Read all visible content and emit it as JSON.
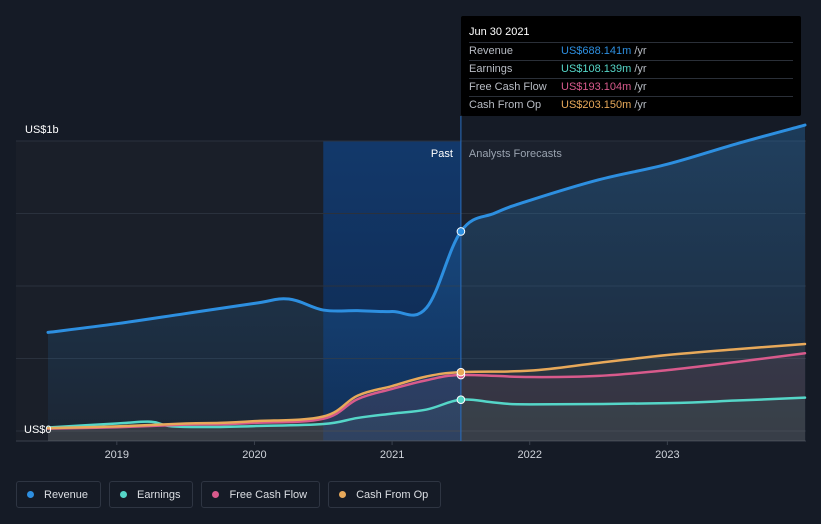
{
  "colors": {
    "revenue": "#2d8fe0",
    "earnings": "#55d6c8",
    "free_cash_flow": "#d85a8c",
    "cash_from_op": "#e8a95a",
    "background": "#151b26",
    "grid": "#2a313d",
    "axis_text": "#cfd3da"
  },
  "tooltip": {
    "date": "Jun 30 2021",
    "rows": [
      {
        "label": "Revenue",
        "value": "US$688.141m",
        "unit": "/yr",
        "color": "#2d8fe0"
      },
      {
        "label": "Earnings",
        "value": "US$108.139m",
        "unit": "/yr",
        "color": "#55d6c8"
      },
      {
        "label": "Free Cash Flow",
        "value": "US$193.104m",
        "unit": "/yr",
        "color": "#d85a8c"
      },
      {
        "label": "Cash From Op",
        "value": "US$203.150m",
        "unit": "/yr",
        "color": "#e8a95a"
      }
    ]
  },
  "legend": [
    {
      "label": "Revenue",
      "color": "#2d8fe0"
    },
    {
      "label": "Earnings",
      "color": "#55d6c8"
    },
    {
      "label": "Free Cash Flow",
      "color": "#d85a8c"
    },
    {
      "label": "Cash From Op",
      "color": "#e8a95a"
    }
  ],
  "chart_data": {
    "type": "line",
    "y_top_label": "US$1b",
    "y_bottom_label": "US$0",
    "past_label": "Past",
    "forecast_label": "Analysts Forecasts",
    "divider_x": 2021.5,
    "past_highlight_start_x": 2020.5,
    "xlim": [
      2018.5,
      2024.0
    ],
    "ylim": [
      0,
      1000
    ],
    "x_ticks": [
      2019,
      2020,
      2021,
      2022,
      2023
    ],
    "x_tick_labels": [
      "2019",
      "2020",
      "2021",
      "2022",
      "2023"
    ],
    "series": [
      {
        "name": "Revenue",
        "key": "revenue",
        "points": [
          [
            2018.5,
            340
          ],
          [
            2019.0,
            370
          ],
          [
            2019.5,
            405
          ],
          [
            2020.0,
            440
          ],
          [
            2020.25,
            455
          ],
          [
            2020.5,
            417
          ],
          [
            2020.75,
            415
          ],
          [
            2021.0,
            412
          ],
          [
            2021.25,
            425
          ],
          [
            2021.5,
            688
          ],
          [
            2021.75,
            752
          ],
          [
            2022.0,
            795
          ],
          [
            2022.5,
            866
          ],
          [
            2023.0,
            920
          ],
          [
            2023.5,
            990
          ],
          [
            2024.0,
            1055
          ]
        ]
      },
      {
        "name": "Earnings",
        "key": "earnings",
        "points": [
          [
            2018.5,
            12
          ],
          [
            2019.0,
            26
          ],
          [
            2019.25,
            32
          ],
          [
            2019.4,
            16
          ],
          [
            2019.75,
            14
          ],
          [
            2020.0,
            17
          ],
          [
            2020.5,
            24
          ],
          [
            2020.75,
            45
          ],
          [
            2021.0,
            60
          ],
          [
            2021.25,
            74
          ],
          [
            2021.5,
            108
          ],
          [
            2021.75,
            98
          ],
          [
            2022.0,
            92
          ],
          [
            2023.0,
            96
          ],
          [
            2023.5,
            105
          ],
          [
            2024.0,
            115
          ]
        ]
      },
      {
        "name": "Free Cash Flow",
        "key": "free_cash_flow",
        "points": [
          [
            2018.5,
            8
          ],
          [
            2019.0,
            13
          ],
          [
            2019.5,
            22
          ],
          [
            2019.75,
            23
          ],
          [
            2020.0,
            28
          ],
          [
            2020.5,
            42
          ],
          [
            2020.75,
            110
          ],
          [
            2021.0,
            145
          ],
          [
            2021.25,
            175
          ],
          [
            2021.5,
            193
          ],
          [
            2022.0,
            186
          ],
          [
            2022.5,
            190
          ],
          [
            2023.0,
            210
          ],
          [
            2023.5,
            238
          ],
          [
            2024.0,
            268
          ]
        ]
      },
      {
        "name": "Cash From Op",
        "key": "cash_from_op",
        "points": [
          [
            2018.5,
            10
          ],
          [
            2019.0,
            16
          ],
          [
            2019.5,
            26
          ],
          [
            2019.75,
            28
          ],
          [
            2020.0,
            34
          ],
          [
            2020.5,
            50
          ],
          [
            2020.75,
            122
          ],
          [
            2021.0,
            155
          ],
          [
            2021.25,
            188
          ],
          [
            2021.5,
            203
          ],
          [
            2022.0,
            208
          ],
          [
            2022.5,
            235
          ],
          [
            2023.0,
            262
          ],
          [
            2023.5,
            282
          ],
          [
            2024.0,
            300
          ]
        ]
      }
    ]
  }
}
